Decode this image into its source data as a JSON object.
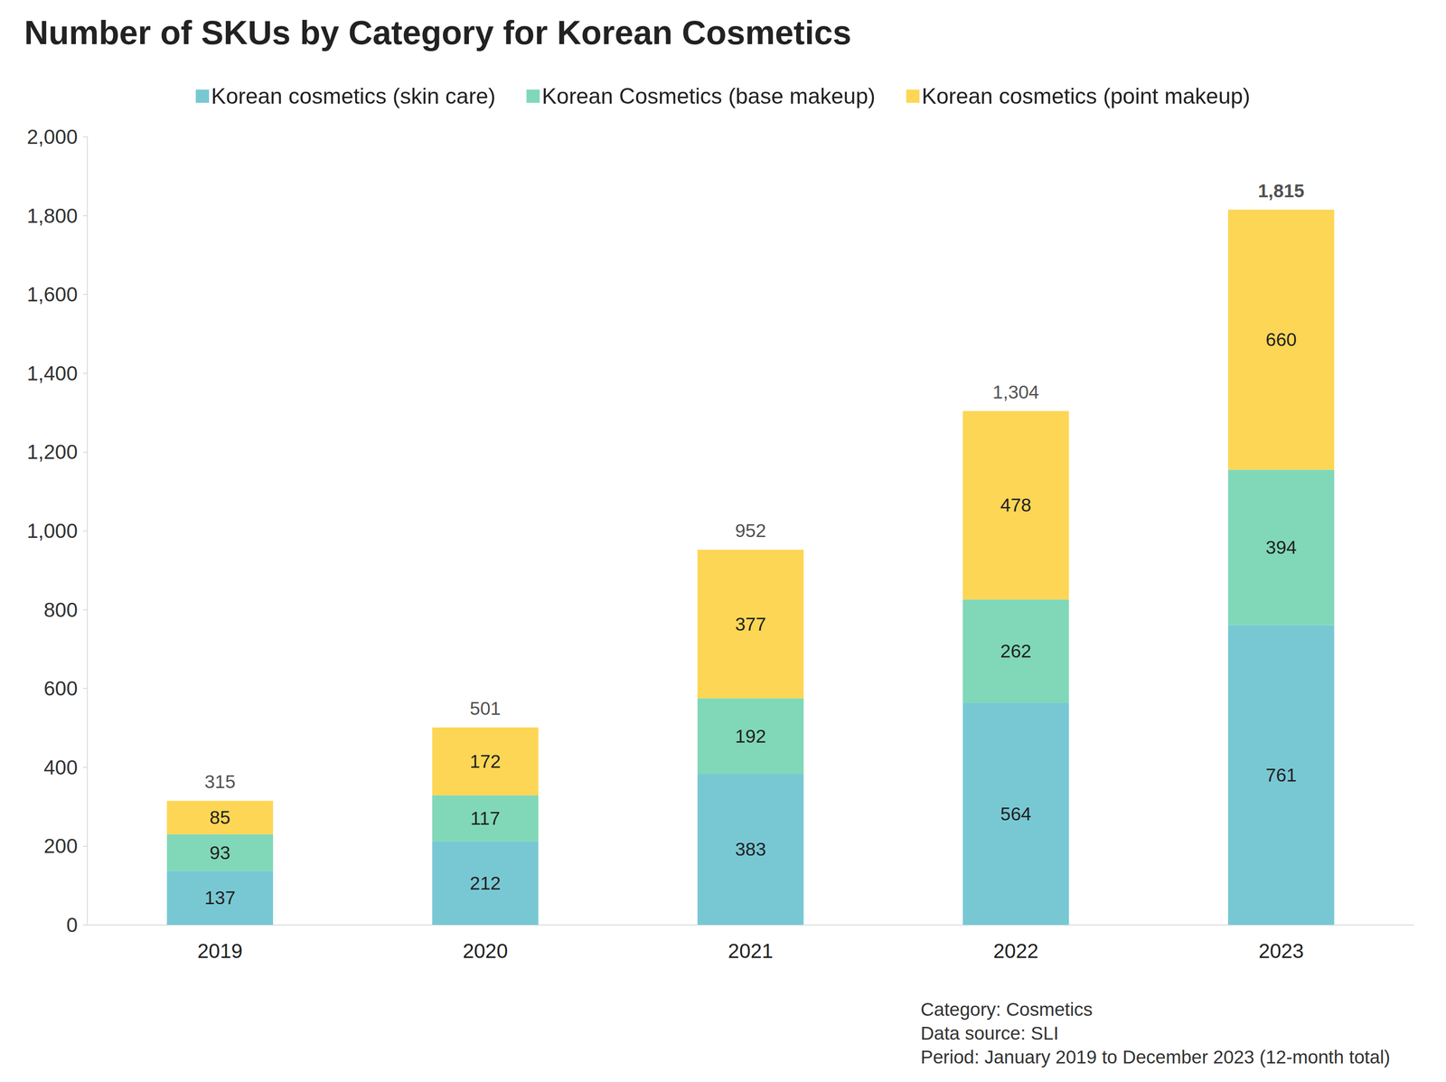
{
  "chart_data": {
    "type": "bar",
    "title": "Number of SKUs by Category for Korean Cosmetics",
    "categories": [
      "2019",
      "2020",
      "2021",
      "2022",
      "2023"
    ],
    "series": [
      {
        "name": "Korean cosmetics (skin care)",
        "color": "#78c8d4",
        "values": [
          137,
          212,
          383,
          564,
          761
        ]
      },
      {
        "name": "Korean Cosmetics (base makeup)",
        "color": "#80d8b8",
        "values": [
          93,
          117,
          192,
          262,
          394
        ]
      },
      {
        "name": "Korean cosmetics (point makeup)",
        "color": "#fdd655",
        "values": [
          85,
          172,
          377,
          478,
          660
        ]
      }
    ],
    "totals": [
      315,
      501,
      952,
      1304,
      1815
    ],
    "total_labels": [
      "315",
      "501",
      "952",
      "1,304",
      "1,815"
    ],
    "ylim": [
      0,
      2000
    ],
    "yticks": [
      0,
      200,
      400,
      600,
      800,
      {
        "value": 1000,
        "label": "1,000"
      },
      {
        "value": 1200,
        "label": "1,200"
      },
      {
        "value": 1400,
        "label": "1,400"
      },
      {
        "value": 1600,
        "label": "1,600"
      },
      {
        "value": 1800,
        "label": "1,800"
      },
      {
        "value": 2000,
        "label": "2,000"
      }
    ],
    "stacked": true,
    "data_labels": true,
    "grid": false,
    "legend": "top",
    "annotations": [
      "Category: Cosmetics",
      "Data source: SLI",
      "Period: January 2019 to December 2023 (12-month total)"
    ]
  }
}
